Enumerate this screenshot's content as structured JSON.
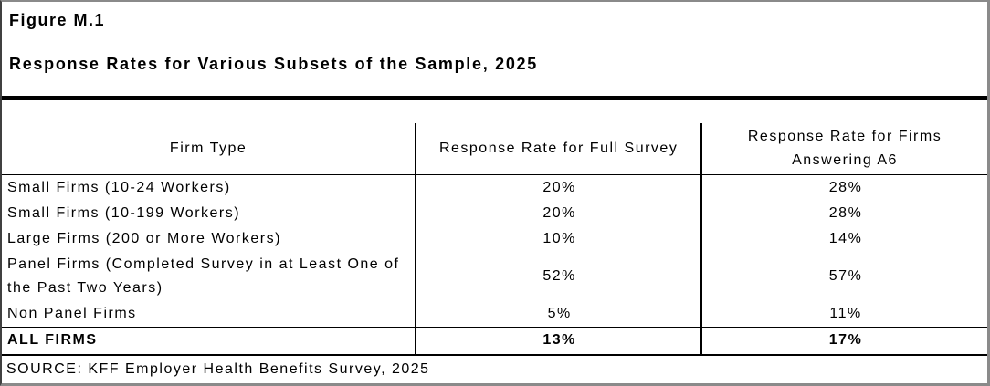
{
  "figure": {
    "label": "Figure M.1",
    "title": "Response Rates for Various Subsets of the Sample, 2025"
  },
  "table": {
    "columns": [
      "Firm Type",
      "Response Rate for Full Survey",
      "Response Rate for Firms Answering A6"
    ],
    "rows": [
      {
        "firm_type": "Small Firms (10-24 Workers)",
        "full_survey": "20%",
        "answering_a6": "28%"
      },
      {
        "firm_type": "Small Firms (10-199 Workers)",
        "full_survey": "20%",
        "answering_a6": "28%"
      },
      {
        "firm_type": "Large Firms (200 or More Workers)",
        "full_survey": "10%",
        "answering_a6": "14%"
      },
      {
        "firm_type": "Panel Firms (Completed Survey in at Least One of the Past Two Years)",
        "full_survey": "52%",
        "answering_a6": "57%"
      },
      {
        "firm_type": "Non Panel Firms",
        "full_survey": "5%",
        "answering_a6": "11%"
      }
    ],
    "total_row": {
      "firm_type": "ALL FIRMS",
      "full_survey": "13%",
      "answering_a6": "17%"
    }
  },
  "source": "SOURCE: KFF Employer Health Benefits Survey, 2025"
}
